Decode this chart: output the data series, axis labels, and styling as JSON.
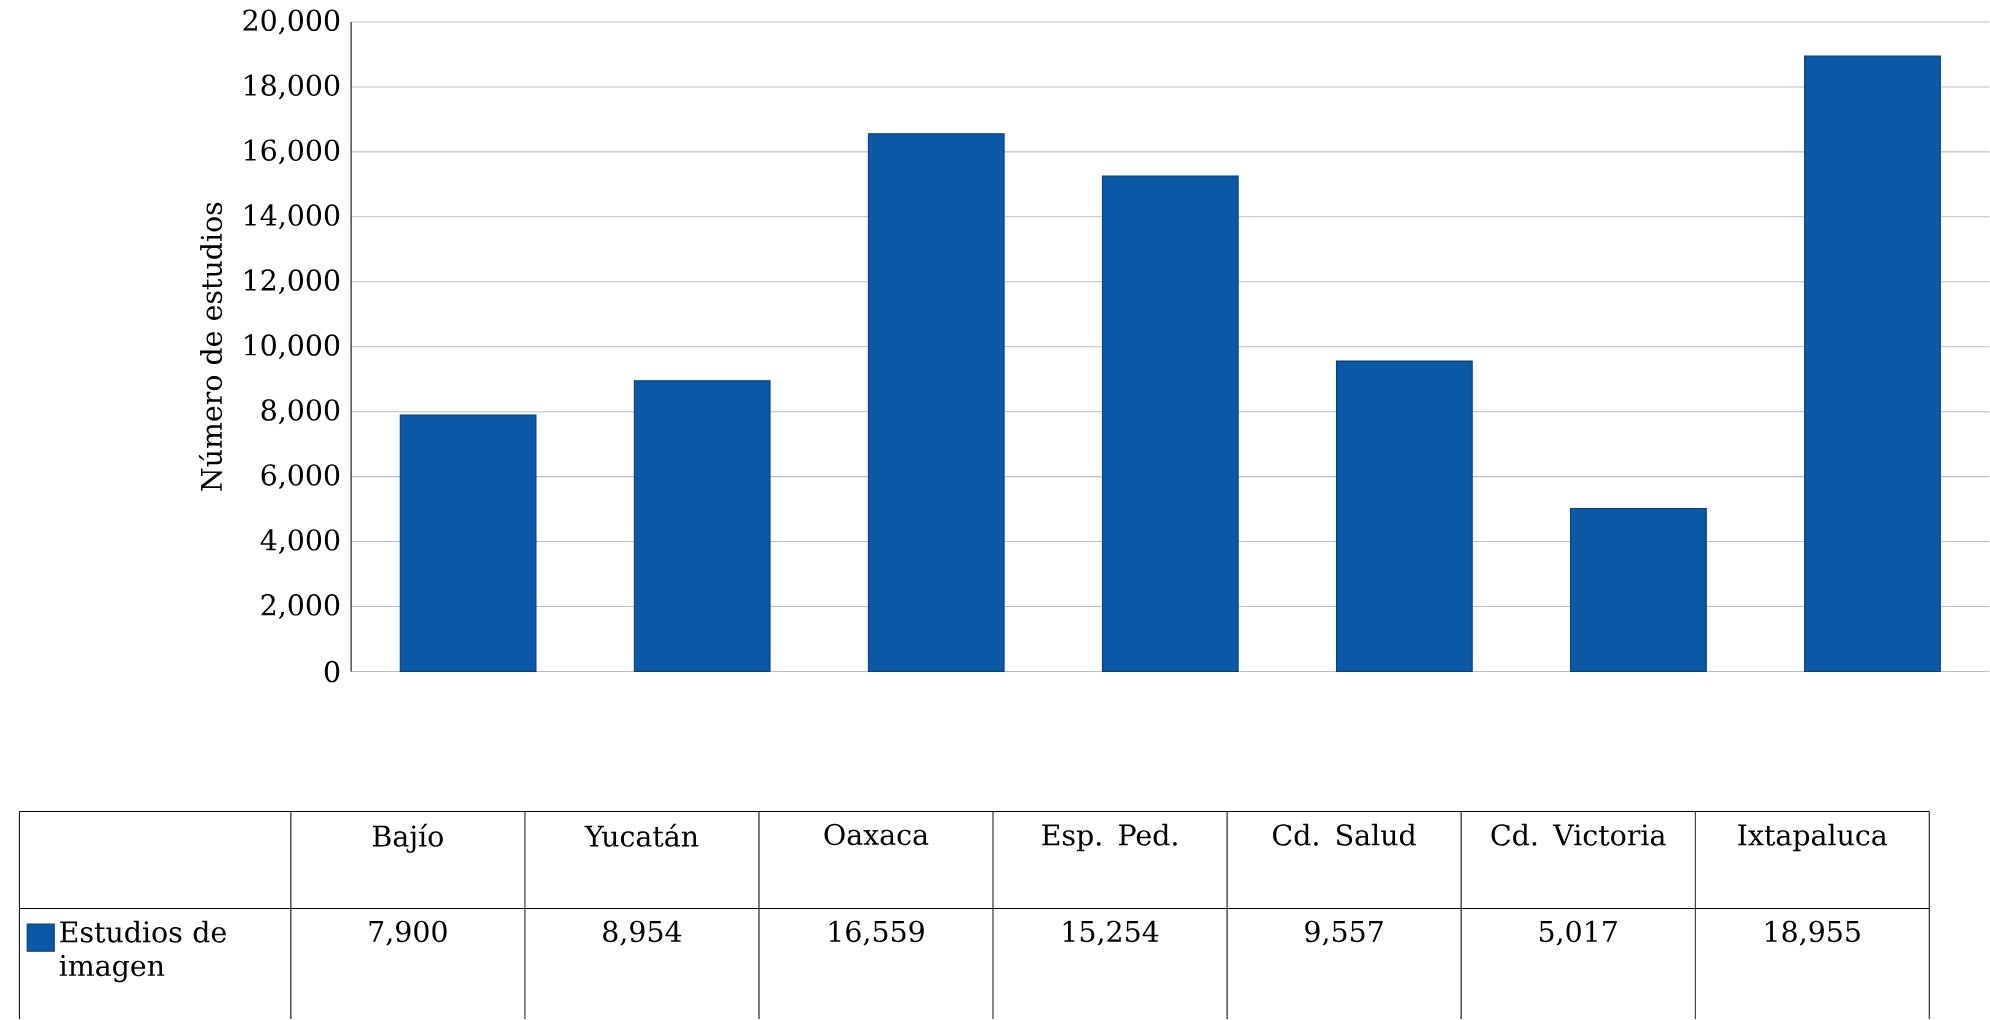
{
  "chart_data": {
    "type": "bar",
    "ylabel": "Número de estudios",
    "categories": [
      "Bajío",
      "Yucatán",
      "Oaxaca",
      "Esp. Ped.",
      "Cd. Salud",
      "Cd. Victoria",
      "Ixtapaluca"
    ],
    "series": [
      {
        "name": "Estudios de imagen",
        "color": "#0a58a6",
        "values": [
          7900,
          8954,
          16559,
          15254,
          9557,
          5017,
          18955
        ],
        "value_labels": [
          "7,900",
          "8,954",
          "16,559",
          "15,254",
          "9,557",
          "5,017",
          "18,955"
        ]
      }
    ],
    "ylim": [
      0,
      20000
    ],
    "yticks": [
      {
        "value": 0,
        "label": "0"
      },
      {
        "value": 2000,
        "label": "2,000"
      },
      {
        "value": 4000,
        "label": "4,000"
      },
      {
        "value": 6000,
        "label": "6,000"
      },
      {
        "value": 8000,
        "label": "8,000"
      },
      {
        "value": 10000,
        "label": "10,000"
      },
      {
        "value": 12000,
        "label": "12,000"
      },
      {
        "value": 14000,
        "label": "14,000"
      },
      {
        "value": 16000,
        "label": "16,000"
      },
      {
        "value": 18000,
        "label": "18,000"
      },
      {
        "value": 20000,
        "label": "20,000"
      }
    ],
    "grid": "y",
    "legend": "bottom"
  }
}
